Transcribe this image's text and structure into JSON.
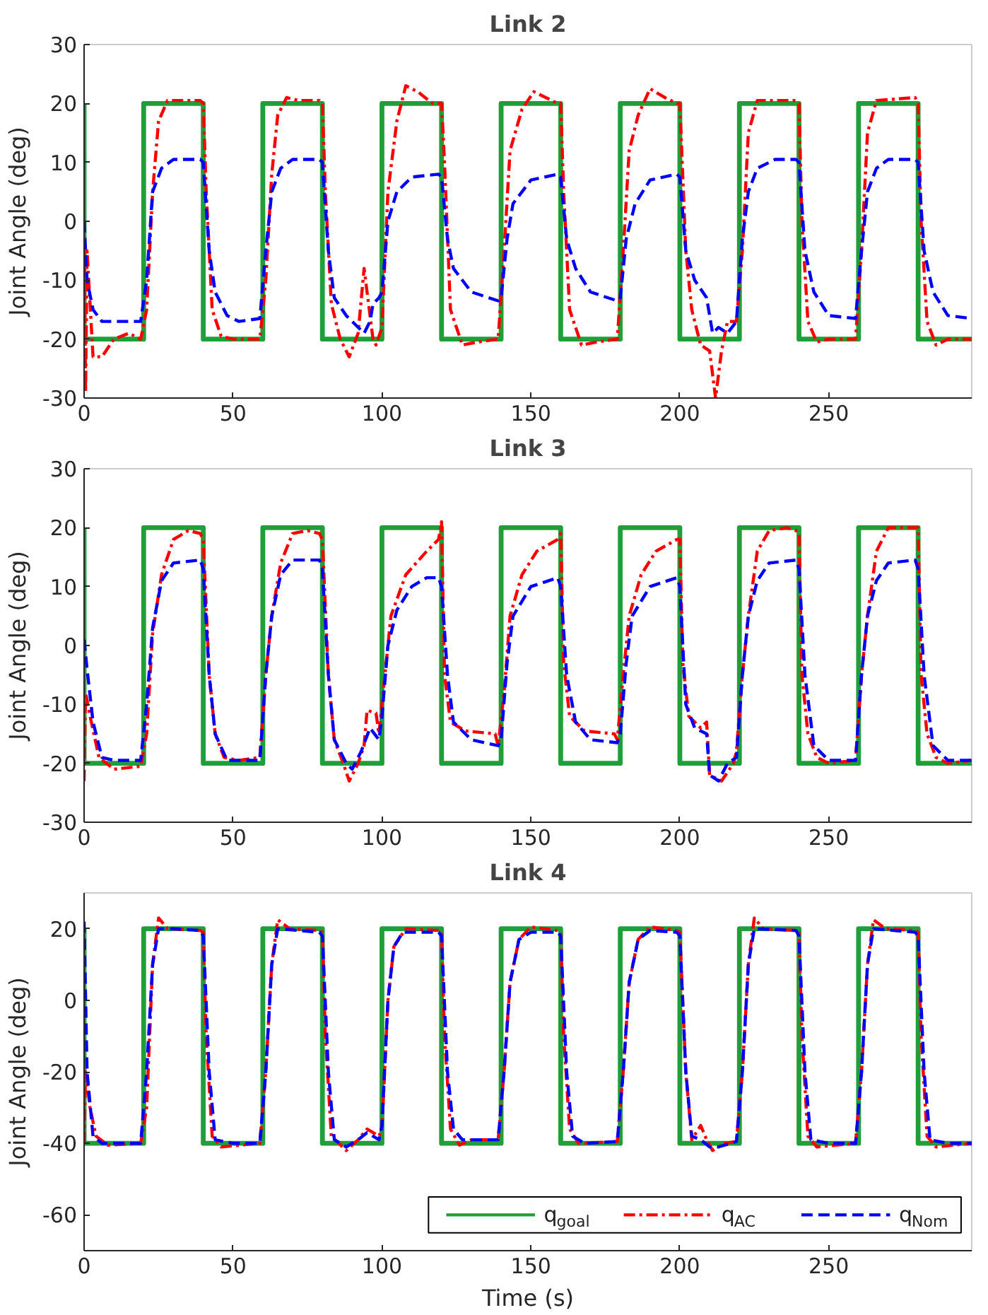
{
  "chart_data": [
    {
      "type": "line",
      "title": "Link 2",
      "ylabel": "Joint Angle (deg)",
      "xlim": [
        0,
        298
      ],
      "xticks": [
        0,
        50,
        100,
        150,
        200,
        250
      ],
      "ylim": [
        -30,
        30
      ],
      "yticks": [
        -30,
        -20,
        -10,
        0,
        10,
        20,
        30
      ],
      "grid": false,
      "legend": false,
      "series": [
        {
          "color": "#1f9e3a",
          "line_style": "solid",
          "x": [
            0,
            0,
            20,
            20,
            40,
            40,
            60,
            60,
            80,
            80,
            100,
            100,
            120,
            120,
            140,
            140,
            160,
            160,
            180,
            180,
            200,
            200,
            220,
            220,
            240,
            240,
            260,
            260,
            280,
            280,
            298
          ],
          "values": [
            20,
            -20,
            -20,
            20,
            20,
            -20,
            -20,
            20,
            20,
            -20,
            -20,
            20,
            20,
            -20,
            -20,
            20,
            20,
            -20,
            -20,
            20,
            20,
            -20,
            -20,
            20,
            20,
            -20,
            -20,
            20,
            20,
            -20,
            -20
          ]
        },
        {
          "color": "#ff0000",
          "line_style": "dashdot",
          "x": [
            0,
            0.5,
            1,
            3,
            6,
            10,
            15,
            19,
            21,
            23,
            25,
            28,
            39,
            40,
            41,
            43,
            46,
            50,
            59,
            61,
            63,
            65,
            68,
            72,
            79,
            80,
            81,
            83,
            86,
            89,
            92,
            94,
            96,
            97,
            98,
            100,
            102,
            105,
            108,
            112,
            117,
            120,
            121,
            123,
            127,
            132,
            139,
            141,
            143,
            147,
            151,
            155,
            159,
            160,
            161,
            163,
            167,
            172,
            179,
            181,
            183,
            186,
            190,
            195,
            199,
            200,
            202,
            204,
            207,
            210,
            212,
            214,
            216,
            219,
            221,
            223,
            226,
            239,
            240,
            241,
            243,
            246,
            250,
            259,
            261,
            263,
            266,
            279,
            280,
            281,
            283,
            286,
            290,
            298
          ],
          "values": [
            0,
            -29,
            -5,
            -23,
            -23,
            -20,
            -19,
            -20,
            -15,
            5,
            17,
            20.5,
            20.5,
            20,
            5,
            -15,
            -19.5,
            -20,
            -20,
            -10,
            8,
            18,
            21,
            20.5,
            20.5,
            20,
            5,
            -14,
            -20,
            -23,
            -19,
            -8,
            -16,
            -20,
            -21,
            -18,
            5,
            17,
            23,
            22,
            20,
            20,
            10,
            -15,
            -21,
            -20.5,
            -20,
            -5,
            12,
            19,
            22,
            21,
            20,
            20,
            5,
            -15,
            -21,
            -20.5,
            -20,
            -5,
            12,
            18,
            22.5,
            21,
            20,
            20,
            -5,
            -15,
            -21,
            -22,
            -30,
            -22,
            -17,
            -17,
            -5,
            15,
            20.5,
            20.5,
            20,
            0,
            -17,
            -20.5,
            -20,
            -20,
            -5,
            15,
            20.5,
            21,
            20,
            0,
            -17,
            -21,
            -20,
            -20
          ]
        },
        {
          "color": "#0000ff",
          "line_style": "dashed",
          "x": [
            0,
            1,
            3,
            6,
            19,
            21,
            23,
            26,
            30,
            39,
            40,
            42,
            44,
            48,
            52,
            59,
            61,
            63,
            66,
            70,
            79,
            80,
            82,
            84,
            88,
            92,
            94,
            96,
            97,
            99,
            100,
            102,
            105,
            110,
            119,
            120,
            122,
            124,
            130,
            139,
            140,
            142,
            144,
            150,
            159,
            160,
            162,
            165,
            170,
            179,
            180,
            182,
            185,
            190,
            199,
            200,
            202,
            205,
            209,
            211,
            213,
            216,
            219,
            221,
            223,
            226,
            232,
            239,
            240,
            242,
            245,
            250,
            259,
            261,
            263,
            266,
            270,
            279,
            280,
            282,
            285,
            290,
            298
          ],
          "values": [
            0,
            -10,
            -15,
            -17,
            -17,
            -10,
            5,
            9,
            10.5,
            10.5,
            10,
            -5,
            -12,
            -16,
            -17,
            -16.5,
            -5,
            5,
            9,
            10.5,
            10.5,
            10,
            -5,
            -13,
            -16,
            -18,
            -19,
            -17,
            -14,
            -13,
            -12,
            0,
            5,
            7.5,
            8,
            7.5,
            -3,
            -8,
            -12,
            -13.5,
            -13,
            -3,
            3,
            7,
            8,
            7.5,
            -3,
            -8,
            -12,
            -13.5,
            -13,
            -3,
            3,
            7,
            8,
            7.5,
            -5,
            -10,
            -13,
            -19,
            -18,
            -19,
            -17,
            -3,
            5,
            9,
            10.5,
            10.5,
            10,
            -5,
            -12,
            -16,
            -16.5,
            -5,
            5,
            9,
            10.5,
            10.5,
            10,
            -5,
            -12,
            -16,
            -16.5
          ]
        }
      ]
    },
    {
      "type": "line",
      "title": "Link 3",
      "ylabel": "Joint Angle (deg)",
      "xlim": [
        0,
        298
      ],
      "xticks": [
        0,
        50,
        100,
        150,
        200,
        250
      ],
      "ylim": [
        -30,
        30
      ],
      "yticks": [
        -30,
        -20,
        -10,
        0,
        10,
        20,
        30
      ],
      "grid": false,
      "legend": false,
      "series": [
        {
          "color": "#1f9e3a",
          "line_style": "solid",
          "x": [
            0,
            0,
            20,
            20,
            40,
            40,
            60,
            60,
            80,
            80,
            100,
            100,
            120,
            120,
            140,
            140,
            160,
            160,
            180,
            180,
            200,
            200,
            220,
            220,
            240,
            240,
            260,
            260,
            280,
            280,
            298
          ],
          "values": [
            20,
            -20,
            -20,
            20,
            20,
            -20,
            -20,
            20,
            20,
            -20,
            -20,
            20,
            20,
            -20,
            -20,
            20,
            20,
            -20,
            -20,
            20,
            20,
            -20,
            -20,
            20,
            20,
            -20,
            -20,
            20,
            20,
            -20,
            -20
          ]
        },
        {
          "color": "#ff0000",
          "line_style": "dashdot",
          "x": [
            0,
            0.5,
            2,
            5,
            10,
            19,
            21,
            23,
            26,
            30,
            35,
            39,
            40,
            42,
            44,
            47,
            52,
            59,
            61,
            63,
            66,
            70,
            75,
            79,
            80,
            82,
            84,
            87,
            89,
            92,
            94,
            95,
            98,
            99,
            101,
            103,
            108,
            115,
            119,
            120,
            121,
            123,
            128,
            138,
            139,
            141,
            143,
            147,
            152,
            159,
            160,
            161,
            163,
            168,
            178,
            179,
            181,
            183,
            187,
            192,
            199,
            200,
            201,
            203,
            207,
            209,
            210,
            214,
            218,
            219,
            221,
            223,
            226,
            230,
            236,
            239,
            240,
            241,
            243,
            246,
            250,
            259,
            261,
            263,
            266,
            270,
            278,
            280,
            281,
            283,
            286,
            290,
            298
          ],
          "values": [
            -23,
            -8,
            -12,
            -19,
            -21,
            -20.5,
            -15,
            2,
            12,
            18,
            19.5,
            19,
            18,
            -5,
            -15,
            -19,
            -19.5,
            -19,
            -5,
            5,
            14,
            19,
            19.5,
            19,
            18,
            -5,
            -16,
            -20,
            -23,
            -20,
            -17,
            -11,
            -11.5,
            -15,
            -5,
            5,
            12,
            16,
            18,
            21,
            -5,
            -13,
            -14.5,
            -15,
            -17,
            -8,
            5,
            12,
            16,
            18,
            19,
            -3,
            -12,
            -14.5,
            -15,
            -16,
            -5,
            5,
            12,
            16,
            18,
            18,
            -3,
            -12,
            -14,
            -13,
            -22,
            -23,
            -20,
            -18,
            -5,
            5,
            16,
            19.5,
            20,
            19.5,
            19,
            -5,
            -15,
            -19,
            -20,
            -19.5,
            -5,
            5,
            16,
            20,
            20,
            20,
            -5,
            -15,
            -19,
            -20,
            -19.5
          ]
        },
        {
          "color": "#0000ff",
          "line_style": "dashed",
          "x": [
            0,
            1,
            3,
            6,
            10,
            19,
            21,
            23,
            26,
            30,
            39,
            40,
            42,
            44,
            48,
            59,
            61,
            63,
            66,
            70,
            79,
            80,
            82,
            84,
            88,
            90,
            93,
            96,
            99,
            100,
            102,
            105,
            110,
            115,
            119,
            120,
            122,
            124,
            130,
            139,
            140,
            142,
            144,
            150,
            159,
            160,
            162,
            165,
            170,
            179,
            180,
            182,
            184,
            190,
            199,
            200,
            202,
            205,
            209,
            210,
            213,
            216,
            219,
            221,
            223,
            226,
            230,
            239,
            240,
            242,
            245,
            250,
            259,
            261,
            263,
            266,
            270,
            279,
            280,
            282,
            285,
            290,
            298
          ],
          "values": [
            1,
            -4,
            -13,
            -19,
            -19.5,
            -19.5,
            -10,
            3,
            11,
            14,
            14.5,
            13,
            -5,
            -15,
            -19.5,
            -19.5,
            -5,
            5,
            12,
            14.5,
            14.5,
            13,
            -5,
            -16,
            -20,
            -21,
            -18,
            -14,
            -16,
            -12,
            0,
            6,
            10,
            11.5,
            11.5,
            10,
            -5,
            -13,
            -16,
            -17,
            -16,
            -3,
            5,
            10,
            11.5,
            10,
            -5,
            -13,
            -16,
            -16.5,
            -15,
            -3,
            5,
            10,
            11.5,
            10,
            -10,
            -14,
            -15,
            -22,
            -23,
            -20,
            -19,
            -5,
            5,
            11,
            14,
            14.5,
            13,
            -5,
            -17,
            -19.5,
            -19.5,
            -5,
            5,
            11,
            14,
            14.5,
            13,
            -5,
            -17,
            -19.5,
            -19.5
          ]
        }
      ]
    },
    {
      "type": "line",
      "title": "Link 4",
      "xlabel": "Time (s)",
      "ylabel": "Joint Angle (deg)",
      "xlim": [
        0,
        298
      ],
      "xticks": [
        0,
        50,
        100,
        150,
        200,
        250
      ],
      "ylim": [
        -70,
        30
      ],
      "yticks": [
        -60,
        -40,
        -20,
        0,
        20
      ],
      "grid": false,
      "legend": "bottom right",
      "series": [
        {
          "name": "q$_{goal}$",
          "color": "#1f9e3a",
          "line_style": "solid",
          "x": [
            0,
            0,
            20,
            20,
            40,
            40,
            60,
            60,
            80,
            80,
            100,
            100,
            120,
            120,
            140,
            140,
            160,
            160,
            180,
            180,
            200,
            200,
            220,
            220,
            240,
            240,
            260,
            260,
            280,
            280,
            298
          ],
          "values": [
            20,
            -40,
            -40,
            20,
            20,
            -40,
            -40,
            20,
            20,
            -40,
            -40,
            20,
            20,
            -40,
            -40,
            20,
            20,
            -40,
            -40,
            20,
            20,
            -40,
            -40,
            20,
            20,
            -40,
            -40,
            20,
            20,
            -40,
            -40
          ]
        },
        {
          "name": "q$_{AC}$",
          "color": "#ff0000",
          "line_style": "dashdot",
          "x": [
            0,
            0.5,
            2,
            4,
            8,
            19,
            21,
            23,
            25,
            28,
            39,
            40,
            41,
            43,
            46,
            59,
            61,
            63,
            65,
            69,
            79,
            80,
            81,
            83,
            88,
            92,
            95,
            99,
            100,
            102,
            104,
            108,
            119,
            120,
            121,
            123,
            126,
            130,
            139,
            141,
            143,
            146,
            150,
            159,
            160,
            161,
            163,
            166,
            179,
            181,
            183,
            186,
            190,
            199,
            200,
            202,
            204,
            207,
            209,
            211,
            215,
            219,
            221,
            223,
            225,
            228,
            239,
            240,
            241,
            243,
            246,
            259,
            261,
            263,
            265,
            269,
            279,
            280,
            281,
            283,
            286,
            298
          ],
          "values": [
            -40,
            -20,
            -30,
            -38,
            -40.5,
            -40,
            -30,
            10,
            23,
            20,
            19.5,
            19,
            -10,
            -38,
            -41,
            -40,
            -20,
            10,
            22.5,
            20,
            19.5,
            19,
            -10,
            -38,
            -42,
            -39,
            -36,
            -38,
            -36,
            0,
            15,
            20,
            19.5,
            19,
            -10,
            -36,
            -40.5,
            -39,
            -39,
            -20,
            5,
            17,
            20.5,
            19.5,
            19,
            -10,
            -36,
            -40,
            -39.5,
            -20,
            5,
            17,
            20.5,
            19.5,
            19,
            -20,
            -39,
            -35,
            -39,
            -42,
            -40,
            -39.5,
            -20,
            10,
            23,
            20,
            19.5,
            19,
            -10,
            -38,
            -41,
            -40,
            -20,
            10,
            22.5,
            20,
            19.5,
            19,
            -10,
            -38,
            -41,
            -40
          ]
        },
        {
          "name": "q$_{Nom}$",
          "color": "#0000ff",
          "line_style": "dashed",
          "x": [
            0,
            1,
            3,
            6,
            19,
            21,
            23,
            25,
            30,
            39,
            40,
            42,
            44,
            50,
            59,
            61,
            63,
            65,
            79,
            80,
            82,
            84,
            88,
            92,
            95,
            99,
            100,
            102,
            104,
            107,
            119,
            120,
            122,
            124,
            127,
            139,
            141,
            143,
            146,
            150,
            159,
            160,
            162,
            164,
            168,
            179,
            181,
            183,
            186,
            190,
            199,
            200,
            202,
            204,
            207,
            210,
            213,
            219,
            221,
            223,
            225,
            239,
            240,
            242,
            244,
            250,
            259,
            261,
            263,
            265,
            279,
            280,
            282,
            284,
            290,
            298
          ],
          "values": [
            22,
            -20,
            -38,
            -40,
            -40,
            -20,
            10,
            20,
            20,
            19.5,
            18,
            -20,
            -39,
            -40,
            -40,
            -20,
            10,
            20,
            19,
            18,
            -20,
            -39,
            -41,
            -39,
            -37,
            -39,
            -35,
            0,
            15,
            19,
            19,
            18,
            -20,
            -36,
            -39,
            -39,
            -20,
            5,
            17,
            19,
            19,
            18,
            -20,
            -38,
            -40,
            -39.5,
            -20,
            5,
            17,
            19.5,
            19,
            18,
            -20,
            -38,
            -39,
            -41,
            -41,
            -39.5,
            -20,
            10,
            20,
            19.5,
            18,
            -20,
            -39,
            -40,
            -40,
            -20,
            10,
            20,
            19,
            18,
            -20,
            -39,
            -40,
            -40
          ]
        }
      ]
    }
  ]
}
